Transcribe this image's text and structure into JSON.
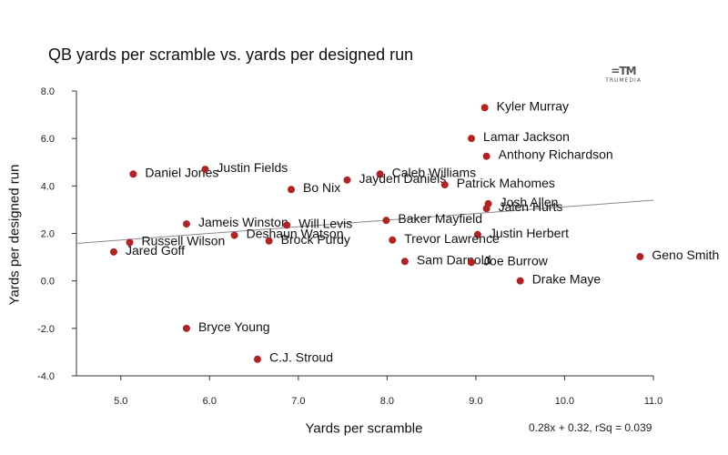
{
  "chart_data": {
    "type": "scatter",
    "title": "QB yards per scramble vs. yards per designed run",
    "xlabel": "Yards per scramble",
    "ylabel": "Yards per designed run",
    "xlim": [
      4.5,
      11.0
    ],
    "ylim": [
      -4.0,
      8.0
    ],
    "xticks": [
      5.0,
      6.0,
      7.0,
      8.0,
      9.0,
      10.0,
      11.0
    ],
    "yticks": [
      -4.0,
      -2.0,
      0.0,
      2.0,
      4.0,
      6.0,
      8.0
    ],
    "trendline": {
      "slope": 0.28,
      "intercept": 0.32,
      "label": "0.28x + 0.32, rSq = 0.039"
    },
    "point_color": "#b22222",
    "points": [
      {
        "name": "Kyler Murray",
        "x": 9.1,
        "y": 7.3
      },
      {
        "name": "Lamar Jackson",
        "x": 8.95,
        "y": 6.0
      },
      {
        "name": "Anthony Richardson",
        "x": 9.12,
        "y": 5.25
      },
      {
        "name": "Daniel Jones",
        "x": 5.14,
        "y": 4.5
      },
      {
        "name": "Justin Fields",
        "x": 5.95,
        "y": 4.7
      },
      {
        "name": "Caleb Williams",
        "x": 7.92,
        "y": 4.5
      },
      {
        "name": "Bo Nix",
        "x": 6.92,
        "y": 3.85
      },
      {
        "name": "Jayden Daniels",
        "x": 7.55,
        "y": 4.25
      },
      {
        "name": "Patrick Mahomes",
        "x": 8.65,
        "y": 4.05
      },
      {
        "name": "Josh Allen",
        "x": 9.14,
        "y": 3.25
      },
      {
        "name": "Jalen Hurts",
        "x": 9.12,
        "y": 3.05
      },
      {
        "name": "Jameis Winston",
        "x": 5.74,
        "y": 2.4
      },
      {
        "name": "Will Levis",
        "x": 6.87,
        "y": 2.35
      },
      {
        "name": "Baker Mayfield",
        "x": 7.99,
        "y": 2.55
      },
      {
        "name": "Deshaun Watson",
        "x": 6.28,
        "y": 1.92
      },
      {
        "name": "Justin Herbert",
        "x": 9.02,
        "y": 1.95
      },
      {
        "name": "Russell Wilson",
        "x": 5.1,
        "y": 1.62
      },
      {
        "name": "Brock Purdy",
        "x": 6.67,
        "y": 1.68
      },
      {
        "name": "Trevor Lawrence",
        "x": 8.06,
        "y": 1.72
      },
      {
        "name": "Jared Goff",
        "x": 4.92,
        "y": 1.22
      },
      {
        "name": "Geno Smith",
        "x": 10.85,
        "y": 1.02
      },
      {
        "name": "Sam Darnold",
        "x": 8.2,
        "y": 0.82
      },
      {
        "name": "Joe Burrow",
        "x": 8.95,
        "y": 0.78
      },
      {
        "name": "Drake Maye",
        "x": 9.5,
        "y": 0.0
      },
      {
        "name": "Bryce Young",
        "x": 5.74,
        "y": -2.0
      },
      {
        "name": "C.J. Stroud",
        "x": 6.54,
        "y": -3.3
      }
    ]
  },
  "brand": {
    "mark": "=TM",
    "text": "TRUMEDIA"
  }
}
